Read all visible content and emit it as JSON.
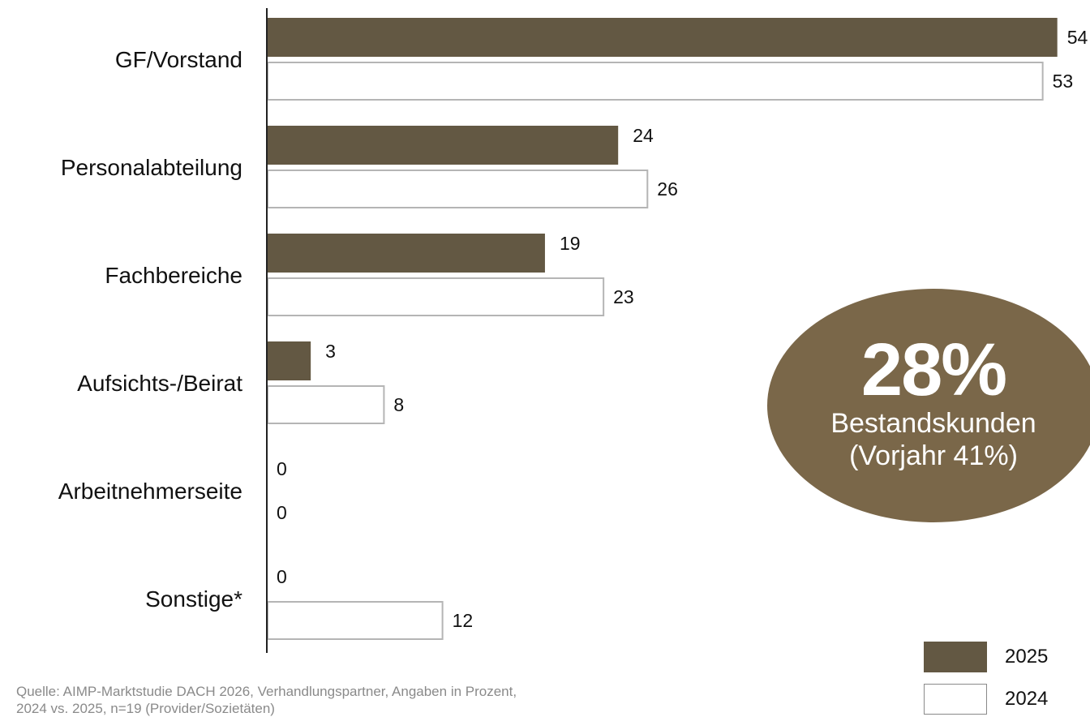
{
  "chart_data": {
    "type": "bar",
    "orientation": "horizontal",
    "categories": [
      "GF/Vorstand",
      "Personalabteilung",
      "Fachbereiche",
      "Aufsichts-/Beirat",
      "Arbeitnehmerseite",
      "Sonstige*"
    ],
    "series": [
      {
        "name": "2025",
        "values": [
          54,
          24,
          19,
          3,
          0,
          0
        ],
        "color": "#635843",
        "fill": "solid"
      },
      {
        "name": "2024",
        "values": [
          53,
          26,
          23,
          8,
          0,
          12
        ],
        "color": "#ffffff",
        "border": "#b5b5b5",
        "fill": "outline"
      }
    ],
    "xlim": [
      0,
      54
    ],
    "grid": false,
    "legend": "bottom-right",
    "data_labels": true
  },
  "callout": {
    "value": "28%",
    "line1": "Bestandskunden",
    "line2": "(Vorjahr 41%)",
    "color": "#7a6749"
  },
  "legend": [
    {
      "label": "2025",
      "color": "#635843"
    },
    {
      "label": "2024",
      "color": "#ffffff",
      "border": "#8a8a8a"
    }
  ],
  "source_note": "Quelle: AIMP-Marktstudie DACH 2026, Verhandlungspartner, Angaben in Prozent,\n2024 vs. 2025, n=19 (Provider/Sozietäten)"
}
